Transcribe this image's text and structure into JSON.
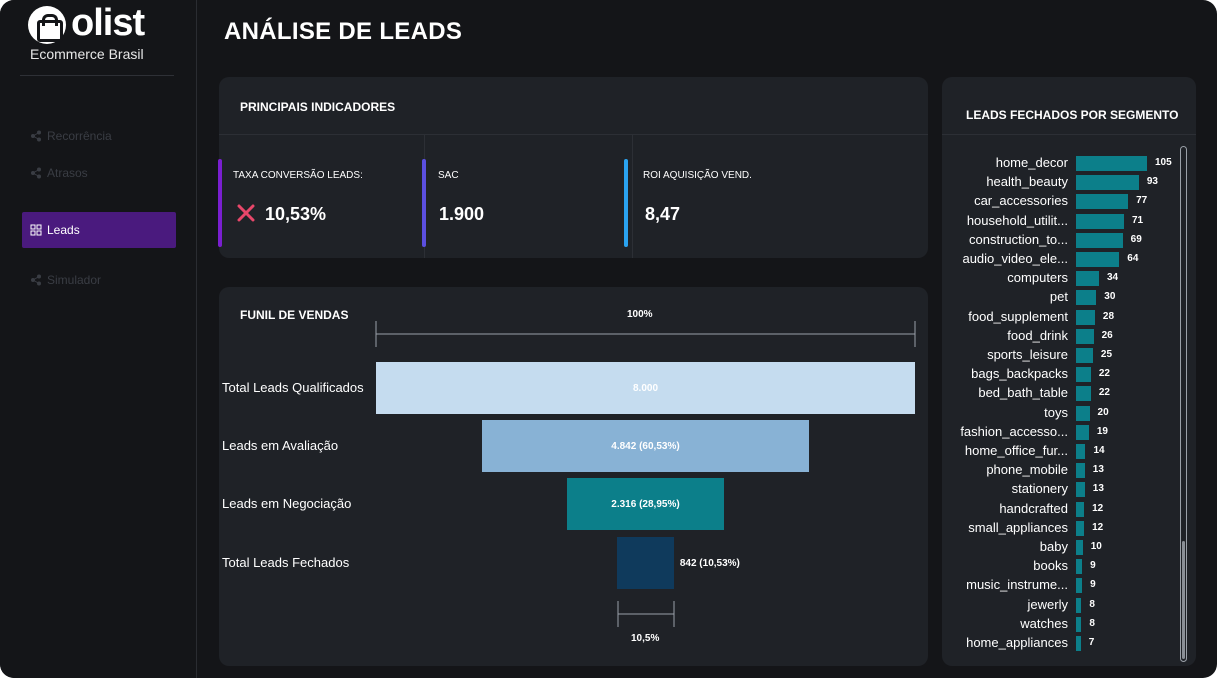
{
  "brand": {
    "name": "olist",
    "subtitle": "Ecommerce Brasil"
  },
  "nav": {
    "items": [
      {
        "label": "Recorrência",
        "active": false
      },
      {
        "label": "Atrasos",
        "active": false
      },
      {
        "label": "Leads",
        "active": true
      },
      {
        "label": "Simulador",
        "active": false
      }
    ]
  },
  "page": {
    "title": "ANÁLISE DE LEADS"
  },
  "kpis": {
    "title": "PRINCIPAIS INDICADORES",
    "items": [
      {
        "label": "TAXA CONVERSÃO LEADS:",
        "value": "10,53%",
        "accent": "#7a1fd0",
        "icon": "x-icon"
      },
      {
        "label": "SAC",
        "value": "1.900",
        "accent": "#5b4fe0"
      },
      {
        "label": "ROI AQUISIÇÃO VEND.",
        "value": "8,47",
        "accent": "#2aa3f0"
      }
    ],
    "icon_color": "#e8476a"
  },
  "funnel": {
    "title": "FUNIL DE VENDAS",
    "top_label": "100%",
    "bottom_label": "10,5%",
    "stages": [
      {
        "label": "Total Leads Qualificados",
        "value": 8000,
        "value_label": "8.000",
        "color": "#c5dcef"
      },
      {
        "label": "Leads em Avaliação",
        "value": 4842,
        "value_label": "4.842 (60,53%)",
        "color": "#88b2d5"
      },
      {
        "label": "Leads em Negociação",
        "value": 2316,
        "value_label": "2.316 (28,95%)",
        "color": "#0c7f8a"
      },
      {
        "label": "Total Leads Fechados",
        "value": 842,
        "value_label": "842 (10,53%)",
        "color": "#0f3a5c"
      }
    ]
  },
  "segments": {
    "title": "LEADS FECHADOS POR SEGMENTO",
    "color": "#0c7f8a",
    "items": [
      {
        "name": "home_decor",
        "value": 105
      },
      {
        "name": "health_beauty",
        "value": 93
      },
      {
        "name": "car_accessories",
        "value": 77
      },
      {
        "name": "household_utilit...",
        "value": 71
      },
      {
        "name": "construction_to...",
        "value": 69
      },
      {
        "name": "audio_video_ele...",
        "value": 64
      },
      {
        "name": "computers",
        "value": 34
      },
      {
        "name": "pet",
        "value": 30
      },
      {
        "name": "food_supplement",
        "value": 28
      },
      {
        "name": "food_drink",
        "value": 26
      },
      {
        "name": "sports_leisure",
        "value": 25
      },
      {
        "name": "bags_backpacks",
        "value": 22
      },
      {
        "name": "bed_bath_table",
        "value": 22
      },
      {
        "name": "toys",
        "value": 20
      },
      {
        "name": "fashion_accesso...",
        "value": 19
      },
      {
        "name": "home_office_fur...",
        "value": 14
      },
      {
        "name": "phone_mobile",
        "value": 13
      },
      {
        "name": "stationery",
        "value": 13
      },
      {
        "name": "handcrafted",
        "value": 12
      },
      {
        "name": "small_appliances",
        "value": 12
      },
      {
        "name": "baby",
        "value": 10
      },
      {
        "name": "books",
        "value": 9
      },
      {
        "name": "music_instrume...",
        "value": 9
      },
      {
        "name": "jewerly",
        "value": 8
      },
      {
        "name": "watches",
        "value": 8
      },
      {
        "name": "home_appliances",
        "value": 7
      }
    ]
  }
}
